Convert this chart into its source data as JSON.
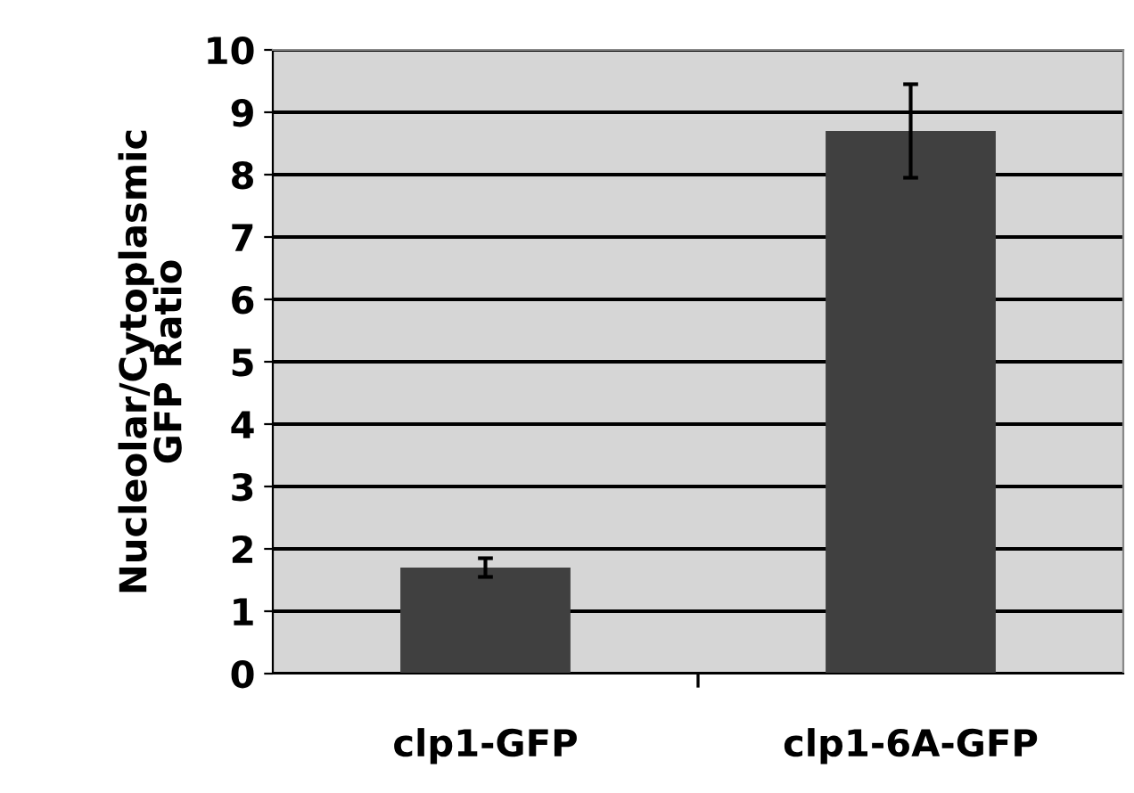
{
  "chart_data": {
    "type": "bar",
    "ylabel": "Nucleolar/Cytoplasmic\nGFP Ratio",
    "categories": [
      "clp1-GFP",
      "clp1-6A-GFP"
    ],
    "values": [
      1.7,
      8.7
    ],
    "errors": [
      0.15,
      0.75
    ],
    "color": "#404040",
    "ylim": [
      0,
      10
    ],
    "yticks": [
      0,
      1,
      2,
      3,
      4,
      5,
      6,
      7,
      8,
      9,
      10
    ],
    "grid": "y"
  }
}
